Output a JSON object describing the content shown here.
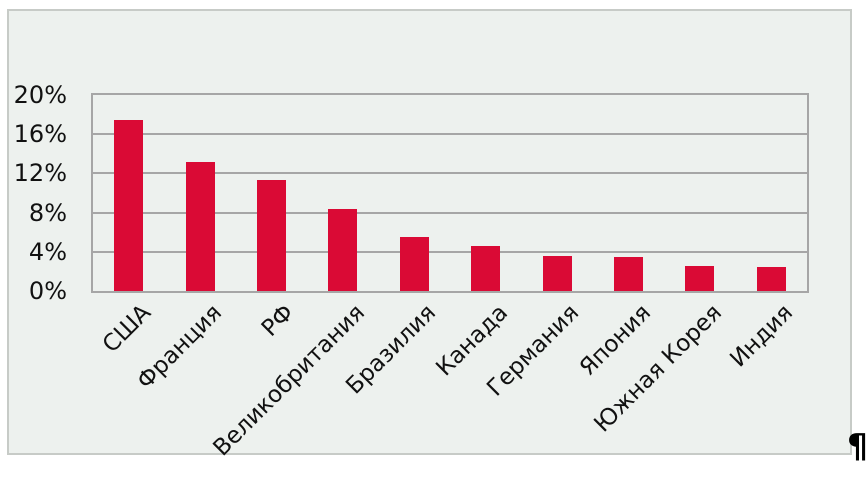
{
  "chart_data": {
    "type": "bar",
    "title": "",
    "xlabel": "",
    "ylabel": "",
    "categories": [
      "США",
      "Франция",
      "РФ",
      "Великобритания",
      "Бразилия",
      "Канада",
      "Германия",
      "Япония",
      "Южная Корея",
      "Индия"
    ],
    "values": [
      17.5,
      13.2,
      11.3,
      8.4,
      5.5,
      4.6,
      3.6,
      3.5,
      2.6,
      2.5
    ],
    "unit": "%",
    "ylim": [
      0,
      20
    ],
    "ytick_step": 4,
    "ytick_labels": [
      "0%",
      "4%",
      "8%",
      "12%",
      "16%",
      "20%"
    ],
    "grid": true,
    "legend": null,
    "bar_color": "#da0a35",
    "chart_bg_color": "#edf1ee",
    "gridline_color": "#a6a6a6"
  },
  "page": {
    "paragraph_mark": "¶"
  }
}
